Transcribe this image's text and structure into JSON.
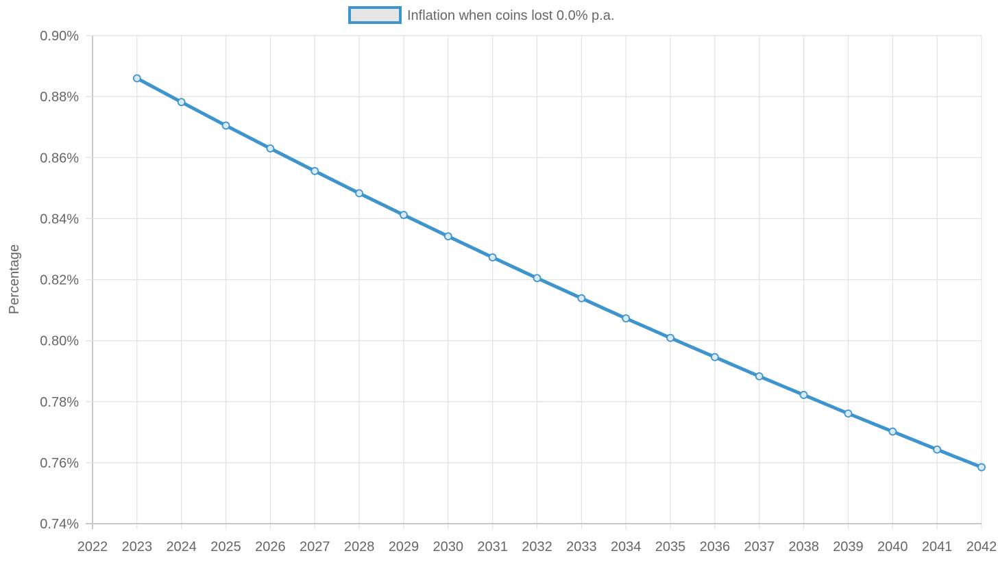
{
  "chart_data": {
    "type": "line",
    "title": "",
    "xlabel": "",
    "ylabel": "Percentage",
    "x": [
      2022,
      2023,
      2024,
      2025,
      2026,
      2027,
      2028,
      2029,
      2030,
      2031,
      2032,
      2033,
      2034,
      2035,
      2036,
      2037,
      2038,
      2039,
      2040,
      2041,
      2042
    ],
    "x_tick_labels": [
      "2022",
      "2023",
      "2024",
      "2025",
      "2026",
      "2027",
      "2028",
      "2029",
      "2030",
      "2031",
      "2032",
      "2033",
      "2034",
      "2035",
      "2036",
      "2037",
      "2038",
      "2039",
      "2040",
      "2041",
      "2042"
    ],
    "y_ticks": [
      0.74,
      0.76,
      0.78,
      0.8,
      0.82,
      0.84,
      0.86,
      0.88,
      0.9
    ],
    "y_tick_labels": [
      "0.74%",
      "0.76%",
      "0.78%",
      "0.80%",
      "0.82%",
      "0.84%",
      "0.86%",
      "0.88%",
      "0.90%"
    ],
    "ylim": [
      0.74,
      0.9
    ],
    "xlim": [
      2022,
      2042
    ],
    "grid": true,
    "legend": "top-center",
    "series": [
      {
        "name": "Inflation when coins lost 0.0% p.a.",
        "color": "#3e95cd",
        "legend_fill": "#e6e6e6",
        "points": [
          {
            "x": 2023,
            "y": 0.886
          },
          {
            "x": 2024,
            "y": 0.8782
          },
          {
            "x": 2025,
            "y": 0.8705
          },
          {
            "x": 2026,
            "y": 0.863
          },
          {
            "x": 2027,
            "y": 0.8556
          },
          {
            "x": 2028,
            "y": 0.8483
          },
          {
            "x": 2029,
            "y": 0.8412
          },
          {
            "x": 2030,
            "y": 0.8342
          },
          {
            "x": 2031,
            "y": 0.8273
          },
          {
            "x": 2032,
            "y": 0.8205
          },
          {
            "x": 2033,
            "y": 0.8139
          },
          {
            "x": 2034,
            "y": 0.8073
          },
          {
            "x": 2035,
            "y": 0.8009
          },
          {
            "x": 2036,
            "y": 0.7946
          },
          {
            "x": 2037,
            "y": 0.7883
          },
          {
            "x": 2038,
            "y": 0.7822
          },
          {
            "x": 2039,
            "y": 0.7761
          },
          {
            "x": 2040,
            "y": 0.7702
          },
          {
            "x": 2041,
            "y": 0.7643
          },
          {
            "x": 2042,
            "y": 0.7585
          }
        ]
      }
    ]
  }
}
